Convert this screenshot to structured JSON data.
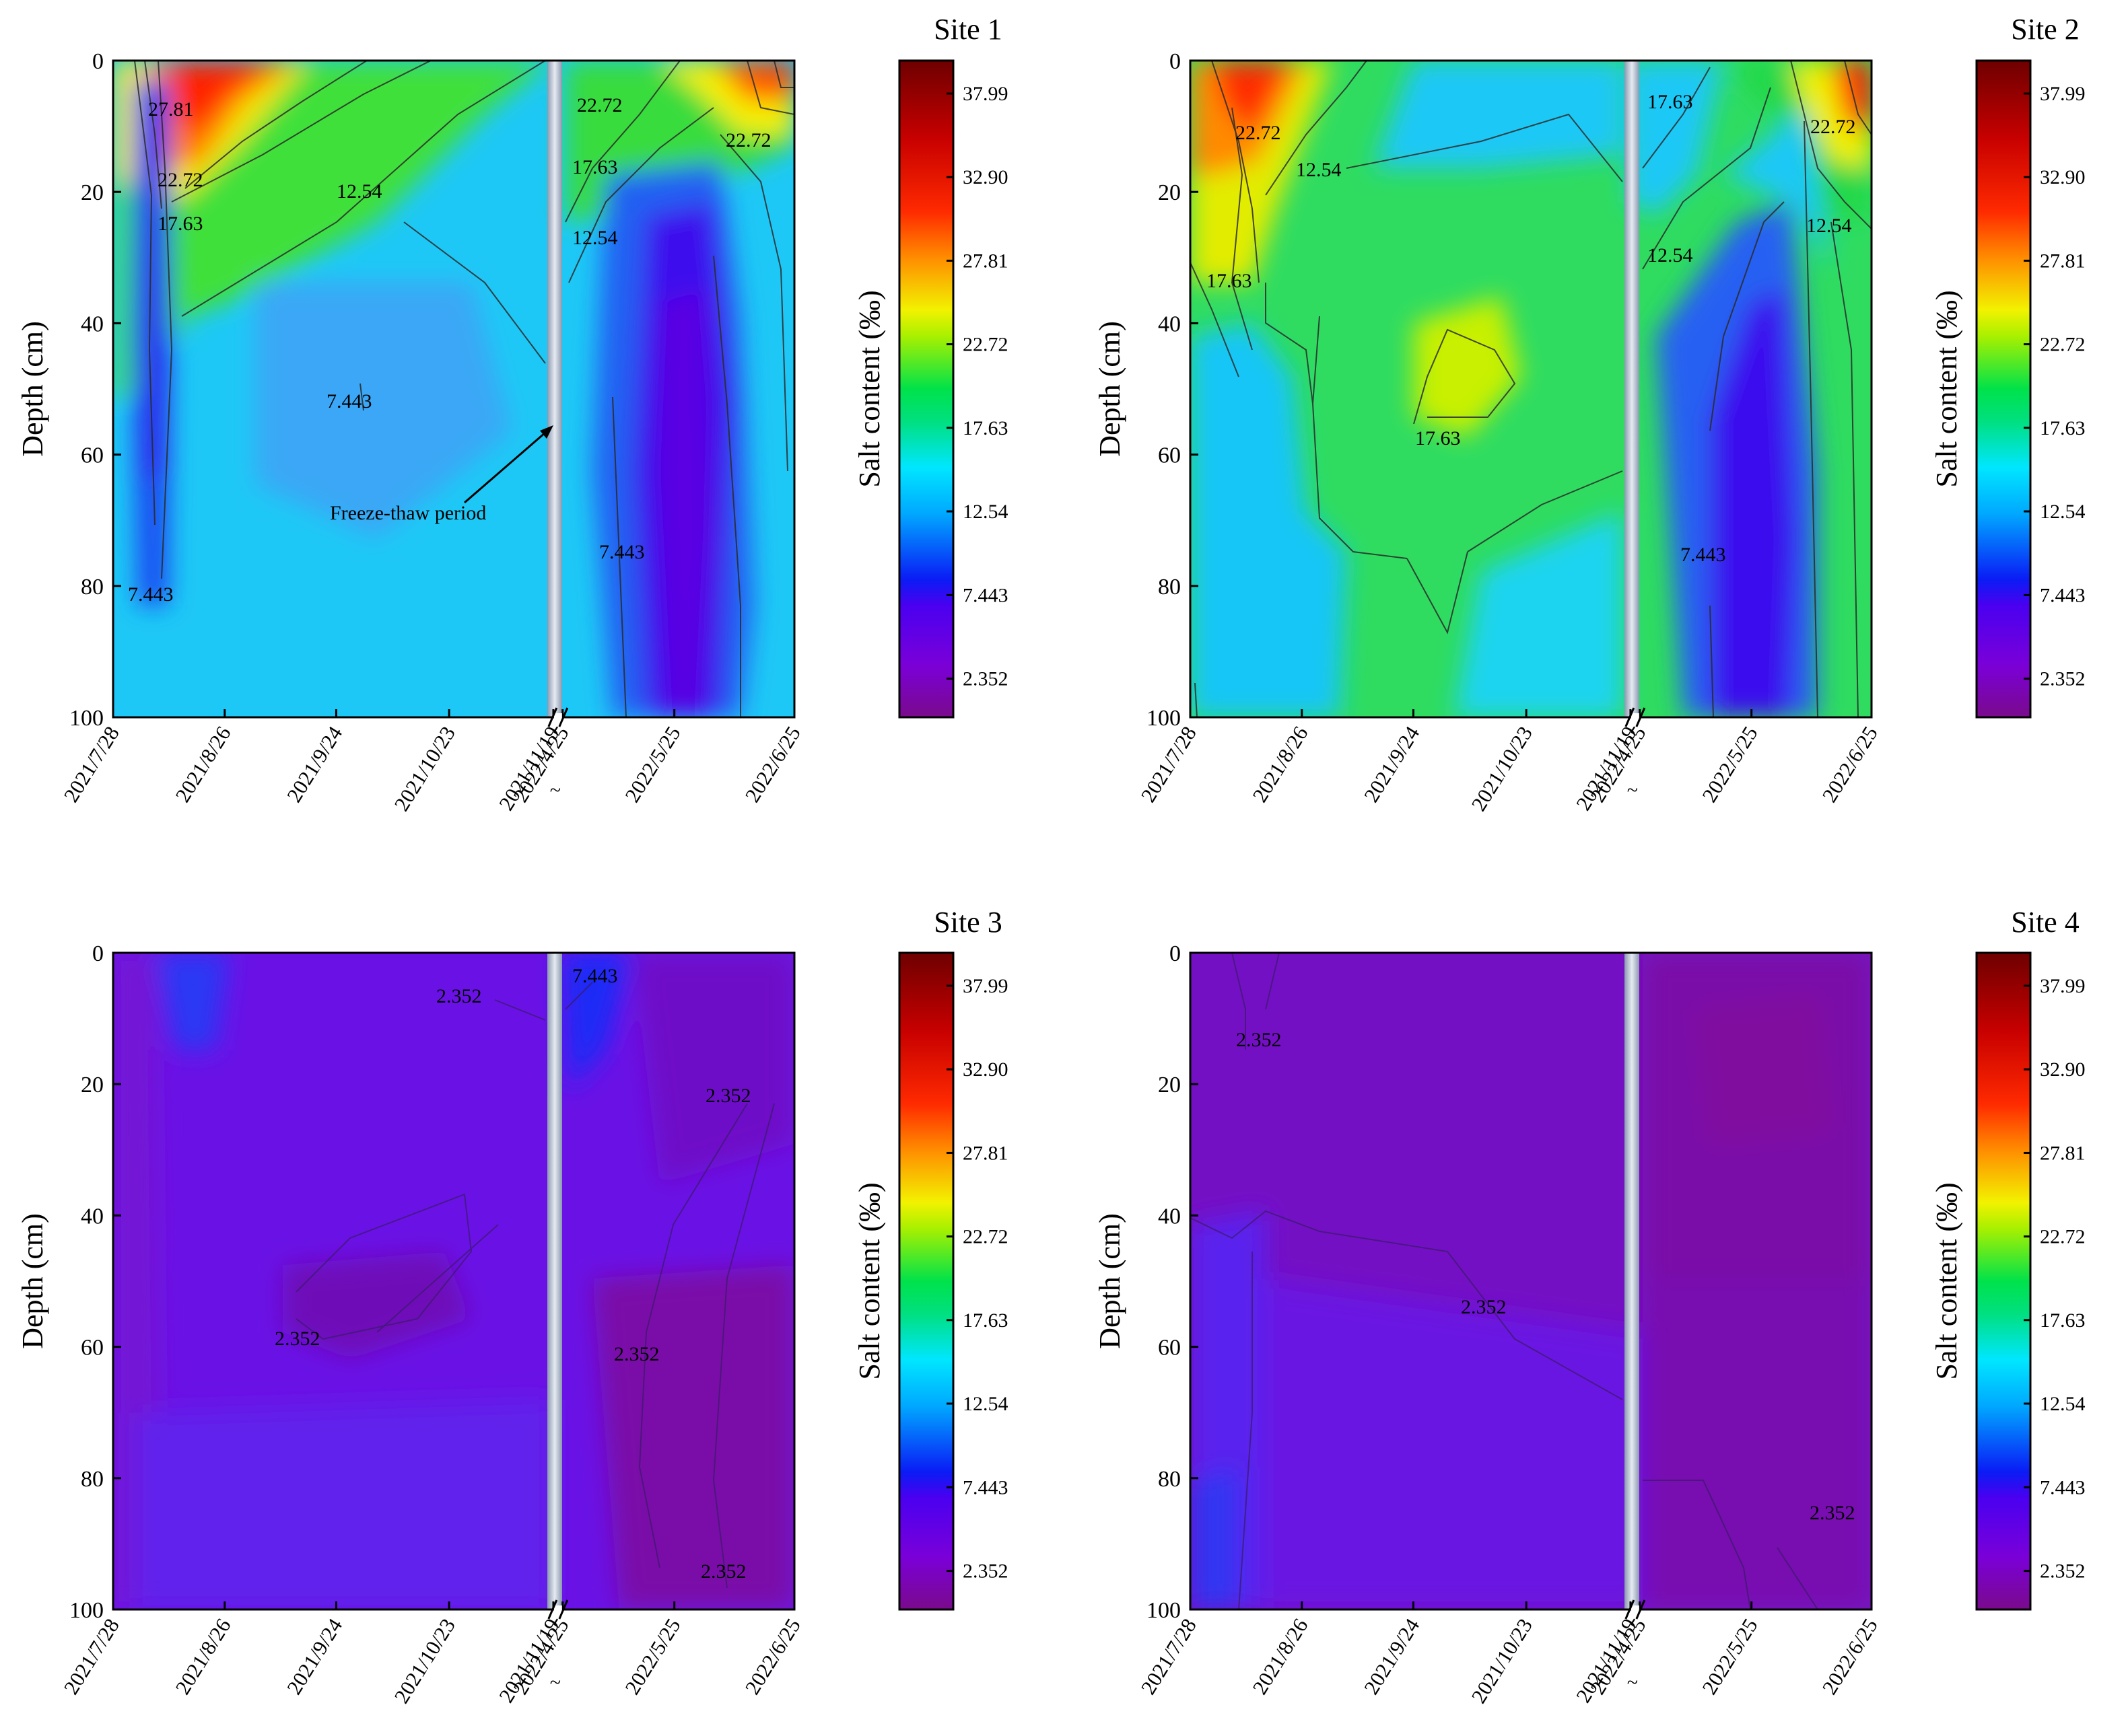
{
  "figure": {
    "shared": {
      "ylabel": "Depth (cm)",
      "colorbar_label": "Salt content (‰)",
      "y_ticks": [
        0,
        20,
        40,
        60,
        80,
        100
      ],
      "ylim": [
        0,
        100
      ],
      "x_ticks": [
        "2021/7/28",
        "2021/8/26",
        "2021/9/24",
        "2021/10/23",
        "2021/11/19",
        "2022/4/25",
        "2022/5/25",
        "2022/6/25"
      ],
      "break_mark": "~",
      "colorbar_ticks": [
        2.352,
        7.443,
        12.54,
        17.63,
        22.72,
        27.81,
        32.9,
        37.99
      ],
      "colorbar_tick_labels": [
        "2.352",
        "7.443",
        "12.54",
        "17.63",
        "22.72",
        "27.81",
        "32.90",
        "37.99"
      ],
      "colorbar_range": [
        0,
        40
      ],
      "colorscale": [
        "#7a0a8c",
        "#6a00e8",
        "#0a1cf5",
        "#00e6ff",
        "#00e24a",
        "#f2f200",
        "#ff2a00",
        "#6e0000"
      ],
      "freeze_thaw_band_color": "#c9d2de"
    }
  },
  "chart_data": [
    {
      "type": "heatmap",
      "title": "Site 1",
      "xlabel": "",
      "ylabel": "Depth (cm)",
      "colorbar_label": "Salt content (‰)",
      "annotation": "Freeze-thaw period",
      "contour_labels": [
        "27.81",
        "22.72",
        "17.63",
        "12.54",
        "7.443",
        "7.443",
        "22.72",
        "17.63",
        "12.54",
        "22.72",
        "7.443"
      ]
    },
    {
      "type": "heatmap",
      "title": "Site 2",
      "xlabel": "",
      "ylabel": "Depth (cm)",
      "colorbar_label": "Salt content (‰)",
      "contour_labels": [
        "22.72",
        "12.54",
        "17.63",
        "17.63",
        "17.63",
        "12.54",
        "22.72",
        "12.54",
        "7.443"
      ]
    },
    {
      "type": "heatmap",
      "title": "Site 3",
      "xlabel": "",
      "ylabel": "Depth (cm)",
      "colorbar_label": "Salt content (‰)",
      "contour_labels": [
        "7.443",
        "2.352",
        "2.352",
        "2.352",
        "2.352",
        "2.352"
      ]
    },
    {
      "type": "heatmap",
      "title": "Site 4",
      "xlabel": "",
      "ylabel": "Depth (cm)",
      "colorbar_label": "Salt content (‰)",
      "contour_labels": [
        "2.352",
        "2.352",
        "2.352"
      ]
    }
  ]
}
